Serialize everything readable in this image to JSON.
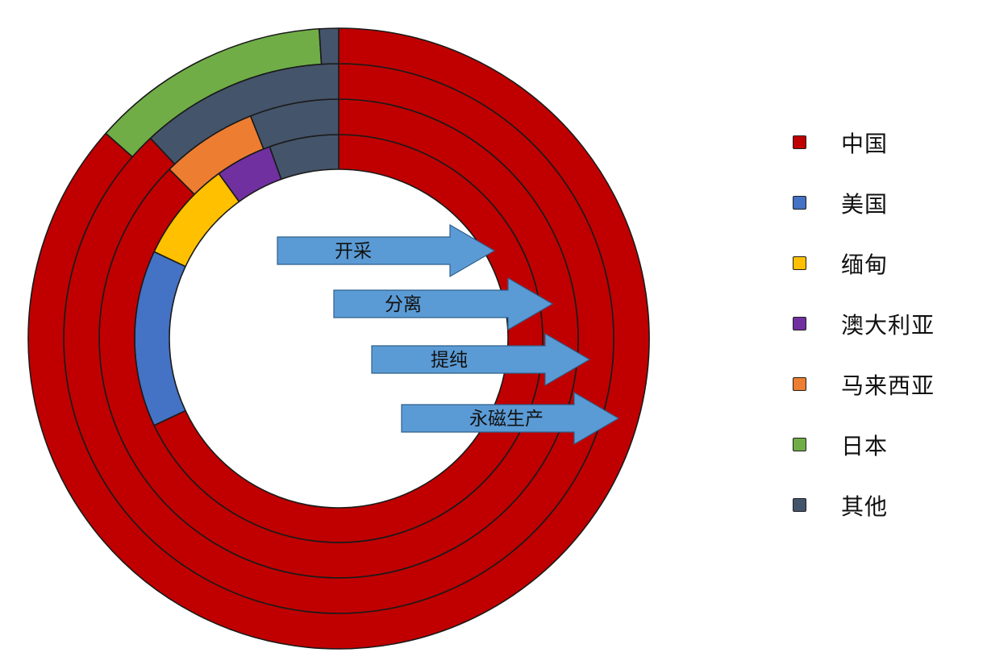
{
  "chart_data": {
    "type": "nested-donut",
    "title": "",
    "legend_position": "right",
    "legend": [
      {
        "name": "中国",
        "color": "#c00000"
      },
      {
        "name": "美国",
        "color": "#4472c4"
      },
      {
        "name": "缅甸",
        "color": "#ffc000"
      },
      {
        "name": "澳大利亚",
        "color": "#7030a0"
      },
      {
        "name": "马来西亚",
        "color": "#ed7d31"
      },
      {
        "name": "日本",
        "color": "#70ad47"
      },
      {
        "name": "其他",
        "color": "#44546a"
      }
    ],
    "series": [
      {
        "name": "开采",
        "ring": "innermost",
        "values": {
          "中国": 68.0,
          "美国": 14.0,
          "缅甸": 8.0,
          "澳大利亚": 4.5,
          "马来西亚": 0,
          "日本": 0,
          "其他": 5.5
        }
      },
      {
        "name": "分离",
        "ring": "second",
        "values": {
          "中国": 87.5,
          "美国": 0,
          "缅甸": 0,
          "澳大利亚": 0,
          "马来西亚": 6.5,
          "日本": 0,
          "其他": 6.0
        }
      },
      {
        "name": "提纯",
        "ring": "third",
        "values": {
          "中国": 88.0,
          "美国": 0,
          "缅甸": 0,
          "澳大利亚": 0,
          "马来西亚": 0,
          "日本": 0,
          "其他": 12.0
        }
      },
      {
        "name": "永磁生产",
        "ring": "outermost",
        "values": {
          "中国": 86.5,
          "美国": 0,
          "缅甸": 0,
          "澳大利亚": 0,
          "马来西亚": 0,
          "日本": 12.5,
          "其他": 1.0
        }
      }
    ]
  }
}
